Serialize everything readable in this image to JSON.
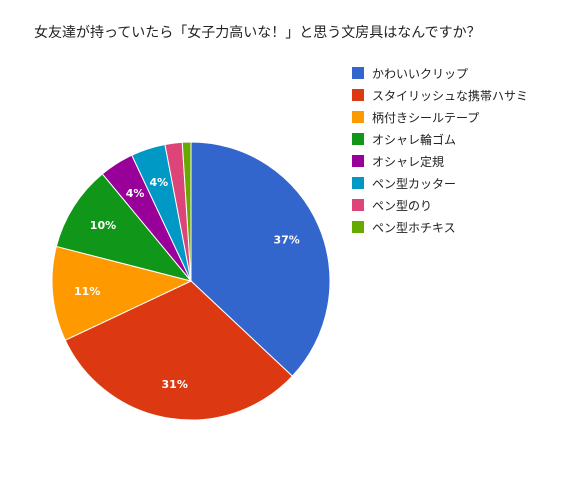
{
  "chart_data": {
    "type": "pie",
    "title": "女友達が持っていたら「女子力高いな！」と思う文房具はなんですか？",
    "legend_position": "right",
    "slices": [
      {
        "label": "かわいいクリップ",
        "value": 37,
        "display": "37%",
        "color": "#3366cc"
      },
      {
        "label": "スタイリッシュな携帯ハサミ",
        "value": 31,
        "display": "31%",
        "color": "#dc3912"
      },
      {
        "label": "柄付きシールテープ",
        "value": 11,
        "display": "11%",
        "color": "#ff9900"
      },
      {
        "label": "オシャレ輪ゴム",
        "value": 10,
        "display": "10%",
        "color": "#109618"
      },
      {
        "label": "オシャレ定規",
        "value": 4,
        "display": "4%",
        "color": "#990099"
      },
      {
        "label": "ペン型カッター",
        "value": 4,
        "display": "4%",
        "color": "#0099c6"
      },
      {
        "label": "ペン型のり",
        "value": 2,
        "display": "",
        "color": "#dd4477"
      },
      {
        "label": "ペン型ホチキス",
        "value": 1,
        "display": "",
        "color": "#66aa00"
      }
    ]
  }
}
